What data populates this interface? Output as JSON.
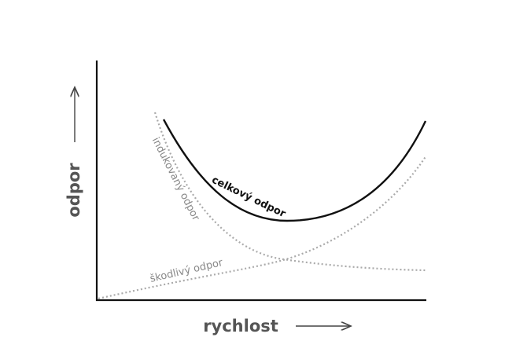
{
  "axes": {
    "y_label": "odpor",
    "x_label": "rychlost"
  },
  "curves": [
    {
      "label": "celkový odpor"
    },
    {
      "label": "indukovaný odpor"
    },
    {
      "label": "škodlivý odpor"
    }
  ]
}
